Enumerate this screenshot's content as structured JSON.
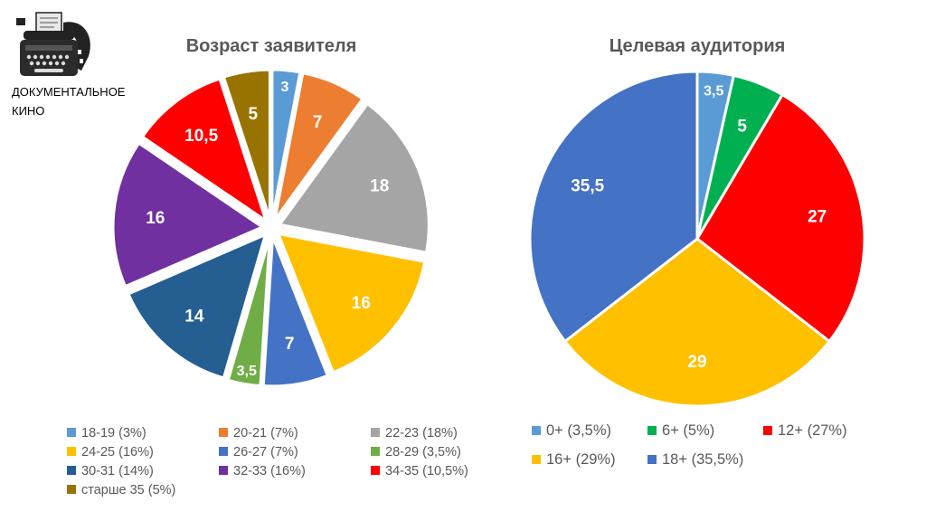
{
  "logo": {
    "line1": "ДОКУМЕНТАЛЬНОЕ",
    "line2": "КИНО",
    "icon": "typewriter-film-icon"
  },
  "chart_data": [
    {
      "type": "pie",
      "title": "Возраст заявителя",
      "categories": [
        "18-19",
        "20-21",
        "22-23",
        "24-25",
        "26-27",
        "28-29",
        "30-31",
        "32-33",
        "34-35",
        "старше 35"
      ],
      "values": [
        3,
        7,
        18,
        16,
        7,
        3.5,
        14,
        16,
        10.5,
        5
      ],
      "data_labels": [
        "3",
        "7",
        "18",
        "16",
        "7",
        "3,5",
        "14",
        "16",
        "10,5",
        "5"
      ],
      "legend": [
        "18-19 (3%)",
        "20-21 (7%)",
        "22-23 (18%)",
        "24-25 (16%)",
        "26-27 (7%)",
        "28-29 (3,5%)",
        "30-31 (14%)",
        "32-33 (16%)",
        "34-35 (10,5%)",
        "старше 35 (5%)"
      ],
      "colors": [
        "#5B9BD5",
        "#ED7D31",
        "#A5A5A5",
        "#FFC000",
        "#4472C4",
        "#70AD47",
        "#255E91",
        "#7030A0",
        "#FF0000",
        "#997300"
      ],
      "exploded": true,
      "legend_position": "bottom"
    },
    {
      "type": "pie",
      "title": "Целевая аудитория",
      "categories": [
        "0+",
        "6+",
        "12+",
        "16+",
        "18+"
      ],
      "values": [
        3.5,
        5,
        27,
        29,
        35.5
      ],
      "data_labels": [
        "3,5",
        "5",
        "27",
        "29",
        "35,5"
      ],
      "legend": [
        "0+ (3,5%)",
        "6+ (5%)",
        "12+ (27%)",
        "16+ (29%)",
        "18+ (35,5%)"
      ],
      "colors": [
        "#5B9BD5",
        "#00B050",
        "#FF0000",
        "#FFC000",
        "#4472C4"
      ],
      "exploded": false,
      "legend_position": "bottom"
    }
  ]
}
